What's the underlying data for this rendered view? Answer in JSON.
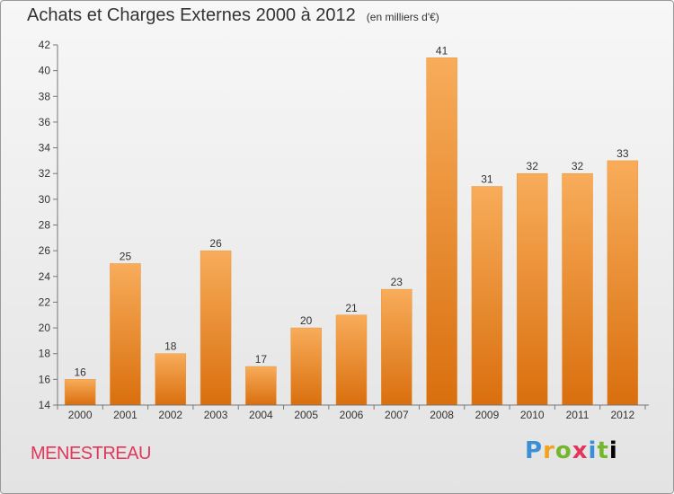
{
  "header": {
    "title": "Achats et Charges Externes 2000 à 2012",
    "subtitle": "(en milliers d'€)"
  },
  "commune": "MENESTREAU",
  "logo_text": "Proxiti",
  "colors": {
    "bar_light": "#f8ac5a",
    "bar_dark": "#d96f0e",
    "commune": "#e2365b"
  },
  "chart_data": {
    "type": "bar",
    "title": "Achats et Charges Externes 2000 à 2012",
    "subtitle": "(en milliers d'€)",
    "categories": [
      "2000",
      "2001",
      "2002",
      "2003",
      "2004",
      "2005",
      "2006",
      "2007",
      "2008",
      "2009",
      "2010",
      "2011",
      "2012"
    ],
    "values": [
      16,
      25,
      18,
      26,
      17,
      20,
      21,
      23,
      41,
      31,
      32,
      32,
      33
    ],
    "ylim": [
      14,
      42
    ],
    "yticks": [
      14,
      16,
      18,
      20,
      22,
      24,
      26,
      28,
      30,
      32,
      34,
      36,
      38,
      40,
      42
    ],
    "grid": false,
    "xlabel": "",
    "ylabel": ""
  }
}
